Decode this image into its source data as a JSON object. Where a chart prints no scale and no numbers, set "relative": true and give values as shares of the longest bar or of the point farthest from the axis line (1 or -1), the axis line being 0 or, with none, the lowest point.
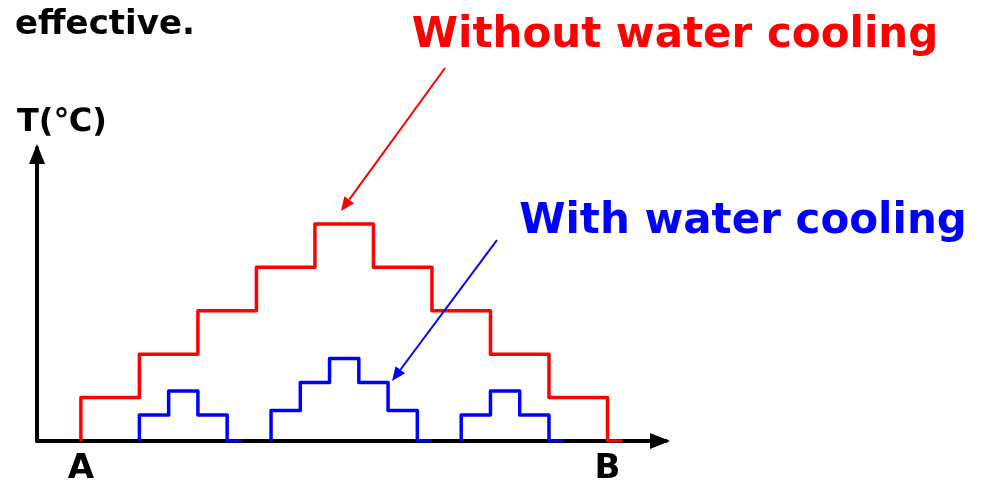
{
  "chart_data": {
    "type": "step",
    "title": "effective.",
    "ylabel": "T(℃)",
    "relative": true,
    "categories": [
      null,
      null,
      null,
      "A",
      null,
      null,
      null,
      null,
      null,
      null,
      null,
      null,
      null,
      null,
      null,
      null,
      null,
      null,
      null,
      null,
      null,
      null,
      null,
      null,
      null,
      null,
      null,
      null,
      null,
      null,
      null,
      null,
      null,
      null,
      null,
      null,
      null,
      null,
      null,
      "B",
      null,
      null,
      null,
      null
    ],
    "series": [
      {
        "color": "#ff0000",
        "values": [
          null,
          null,
          null,
          0,
          0.2,
          0.2,
          0.2,
          0.2,
          0.4,
          0.4,
          0.4,
          0.4,
          0.6,
          0.6,
          0.6,
          0.6,
          0.8,
          0.8,
          0.8,
          0.8,
          1,
          1,
          1,
          1,
          0.8,
          0.8,
          0.8,
          0.8,
          0.6,
          0.6,
          0.6,
          0.6,
          0.4,
          0.4,
          0.4,
          0.4,
          0.2,
          0.2,
          0.2,
          0.2,
          0,
          null,
          null,
          null
        ]
      },
      {
        "color": "#0000ff",
        "values": [
          null,
          null,
          null,
          null,
          null,
          null,
          null,
          0,
          0.12,
          0.12,
          0.23,
          0.23,
          0.12,
          0.12,
          0,
          null,
          0,
          0.14,
          0.14,
          0.27,
          0.27,
          0.38,
          0.38,
          0.27,
          0.27,
          0.14,
          0.14,
          0,
          null,
          0,
          0.12,
          0.12,
          0.23,
          0.23,
          0.12,
          0.12,
          0,
          null,
          null,
          null,
          null,
          null,
          null,
          null
        ]
      }
    ],
    "annotations": [
      "Without water cooling",
      "With water cooling"
    ],
    "grid": false,
    "marker": "none",
    "line_style": "solid"
  }
}
